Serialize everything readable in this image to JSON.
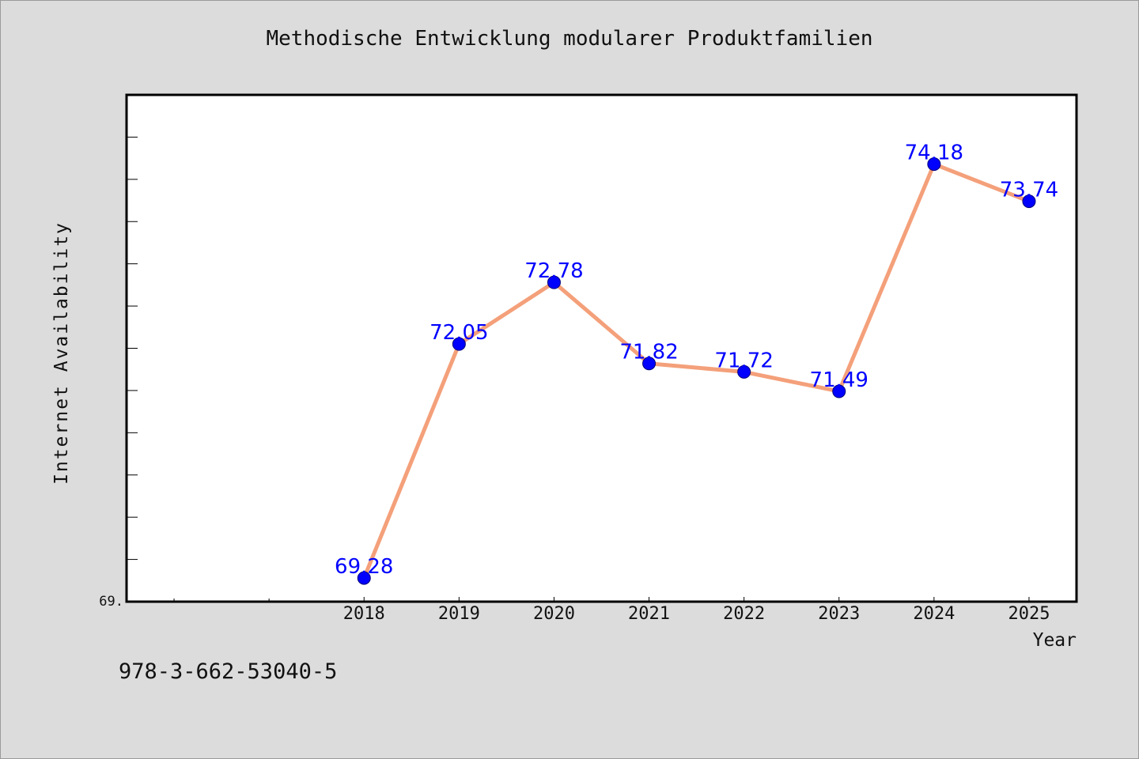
{
  "page": {
    "isbn": "978-3-662-53040-5"
  },
  "colors": {
    "background": "#dcdcdc",
    "plot_background": "#ffffff",
    "line": "#f4a07a",
    "marker": "#0000ff",
    "value_label": "#0000ff"
  },
  "chart_data": {
    "type": "line",
    "title": "Methodische Entwicklung modularer Produktfamilien",
    "xlabel": "Year",
    "ylabel": "Internet Availability",
    "categories": [
      "2018",
      "2019",
      "2020",
      "2021",
      "2022",
      "2023",
      "2024",
      "2025"
    ],
    "series": [
      {
        "values": [
          69.28,
          72.05,
          72.78,
          71.82,
          71.72,
          71.49,
          74.18,
          73.74
        ],
        "value_labels": [
          "69.28",
          "72.05",
          "72.78",
          "71.82",
          "71.72",
          "71.49",
          "74.18",
          "73.74"
        ]
      }
    ],
    "x_range": [
      2015.5,
      2025.5
    ],
    "ylim": [
      69.0,
      75.0
    ],
    "y_tick_label": "69.",
    "grid": false,
    "legend": "none"
  }
}
